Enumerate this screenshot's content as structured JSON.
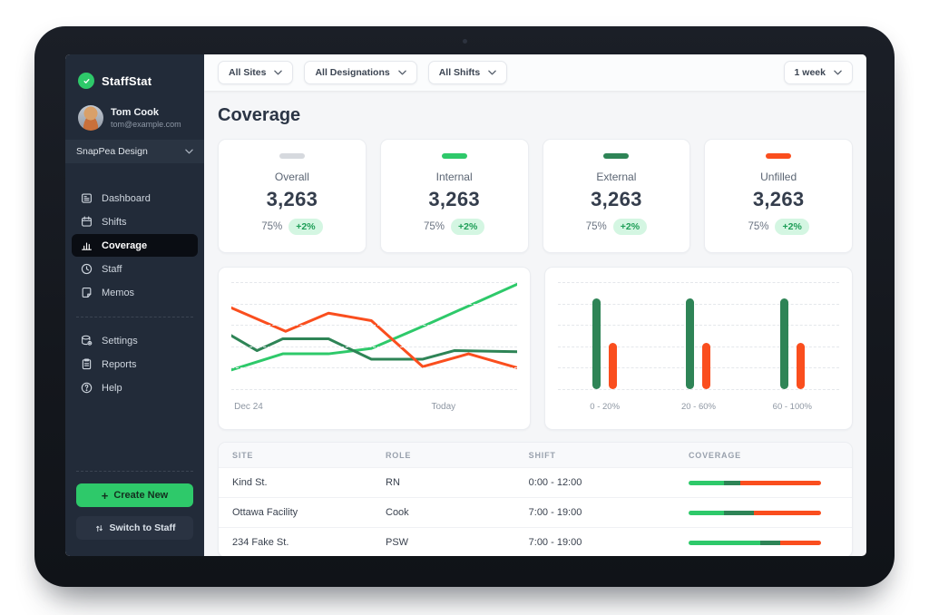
{
  "brand": {
    "name": "StaffStat"
  },
  "user": {
    "name": "Tom Cook",
    "email": "tom@example.com"
  },
  "org": {
    "name": "SnapPea Design"
  },
  "sidebar": {
    "nav": [
      {
        "label": "Dashboard"
      },
      {
        "label": "Shifts"
      },
      {
        "label": "Coverage",
        "active": true
      },
      {
        "label": "Staff"
      },
      {
        "label": "Memos"
      }
    ],
    "nav_secondary": [
      {
        "label": "Settings"
      },
      {
        "label": "Reports"
      },
      {
        "label": "Help"
      }
    ],
    "create_button": "Create New",
    "switch_button": "Switch to Staff"
  },
  "topbar": {
    "filters": [
      {
        "label": "All Sites"
      },
      {
        "label": "All Designations"
      },
      {
        "label": "All Shifts"
      }
    ],
    "period": {
      "label": "1 week"
    }
  },
  "page": {
    "title": "Coverage"
  },
  "stats": [
    {
      "label": "Overall",
      "value": "3,263",
      "percent": "75%",
      "delta": "+2%",
      "accent": "#d6d9de"
    },
    {
      "label": "Internal",
      "value": "3,263",
      "percent": "75%",
      "delta": "+2%",
      "accent": "#2ec96a"
    },
    {
      "label": "External",
      "value": "3,263",
      "percent": "75%",
      "delta": "+2%",
      "accent": "#2e8456"
    },
    {
      "label": "Unfilled",
      "value": "3,263",
      "percent": "75%",
      "delta": "+2%",
      "accent": "#fa4e1e"
    }
  ],
  "chart_data": [
    {
      "type": "line",
      "grid": "dashed-horizontal",
      "ylim": [
        0,
        100
      ],
      "x_axis_labels": [
        {
          "label": "Dec 24",
          "position": 0.01
        },
        {
          "label": "Today",
          "position": 0.7
        }
      ],
      "series": [
        {
          "name": "internal",
          "color": "#2ec96a",
          "points": [
            [
              0,
              18
            ],
            [
              18,
              33
            ],
            [
              34,
              33
            ],
            [
              49,
              38
            ],
            [
              69,
              61
            ],
            [
              100,
              98
            ]
          ]
        },
        {
          "name": "external",
          "color": "#2e8456",
          "points": [
            [
              0,
              50
            ],
            [
              9,
              36
            ],
            [
              18,
              47
            ],
            [
              34,
              47
            ],
            [
              49,
              28
            ],
            [
              67,
              28
            ],
            [
              78,
              36
            ],
            [
              100,
              35
            ]
          ]
        },
        {
          "name": "unfilled",
          "color": "#fa4e1e",
          "points": [
            [
              0,
              76
            ],
            [
              19,
              54
            ],
            [
              34,
              71
            ],
            [
              49,
              64
            ],
            [
              67,
              21
            ],
            [
              83,
              33
            ],
            [
              100,
              20
            ]
          ]
        }
      ]
    },
    {
      "type": "bar",
      "grid": "dashed-horizontal",
      "ylim": [
        0,
        100
      ],
      "categories": [
        "0 - 20%",
        "20 - 60%",
        "60 - 100%"
      ],
      "series": [
        {
          "name": "filled",
          "color": "#2e8456",
          "values": [
            85,
            85,
            85
          ]
        },
        {
          "name": "unfilled",
          "color": "#fa4e1e",
          "values": [
            43,
            43,
            43
          ]
        }
      ]
    }
  ],
  "table": {
    "headers": [
      "SITE",
      "ROLE",
      "SHIFT",
      "COVERAGE"
    ],
    "rows": [
      {
        "site": "Kind St.",
        "role": "RN",
        "shift": "0:00 - 12:00",
        "coverage": [
          {
            "color": "#2ec96a",
            "pct": 27
          },
          {
            "color": "#2e8456",
            "pct": 12
          },
          {
            "color": "#fa4e1e",
            "pct": 61
          }
        ]
      },
      {
        "site": "Ottawa Facility",
        "role": "Cook",
        "shift": "7:00 - 19:00",
        "coverage": [
          {
            "color": "#2ec96a",
            "pct": 27
          },
          {
            "color": "#2e8456",
            "pct": 22
          },
          {
            "color": "#fa4e1e",
            "pct": 51
          }
        ]
      },
      {
        "site": "234 Fake St.",
        "role": "PSW",
        "shift": "7:00 - 19:00",
        "coverage": [
          {
            "color": "#2ec96a",
            "pct": 54
          },
          {
            "color": "#2e8456",
            "pct": 15
          },
          {
            "color": "#fa4e1e",
            "pct": 31
          }
        ]
      }
    ]
  },
  "colors": {
    "green": "#2ec96a",
    "dark_green": "#2e8456",
    "orange": "#fa4e1e",
    "badge_bg": "#d4f6e2",
    "badge_text": "#1e9e57",
    "sidebar_bg": "#222b39"
  }
}
